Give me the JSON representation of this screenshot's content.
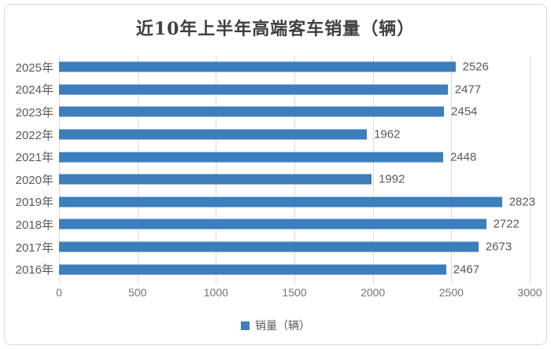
{
  "chart_data": {
    "type": "bar",
    "orientation": "horizontal",
    "title": "近10年上半年高端客车销量（辆）",
    "categories": [
      "2025年",
      "2024年",
      "2023年",
      "2022年",
      "2021年",
      "2020年",
      "2019年",
      "2018年",
      "2017年",
      "2016年"
    ],
    "values": [
      2526,
      2477,
      2454,
      1962,
      2448,
      1992,
      2823,
      2722,
      2673,
      2467
    ],
    "series_name": "销量（辆）",
    "xlabel": "",
    "ylabel": "",
    "xlim": [
      0,
      3000
    ],
    "x_ticks": [
      0,
      500,
      1000,
      1500,
      2000,
      2500,
      3000
    ],
    "grid": "vertical",
    "legend_position": "bottom"
  },
  "legend": {
    "label": "销量（辆）"
  },
  "colors": {
    "bar": "#3D7EBC",
    "title": "#404040",
    "label": "#595959",
    "tick": "#737373",
    "gridline": "#D9D9D9",
    "border": "#D9D9D9"
  }
}
